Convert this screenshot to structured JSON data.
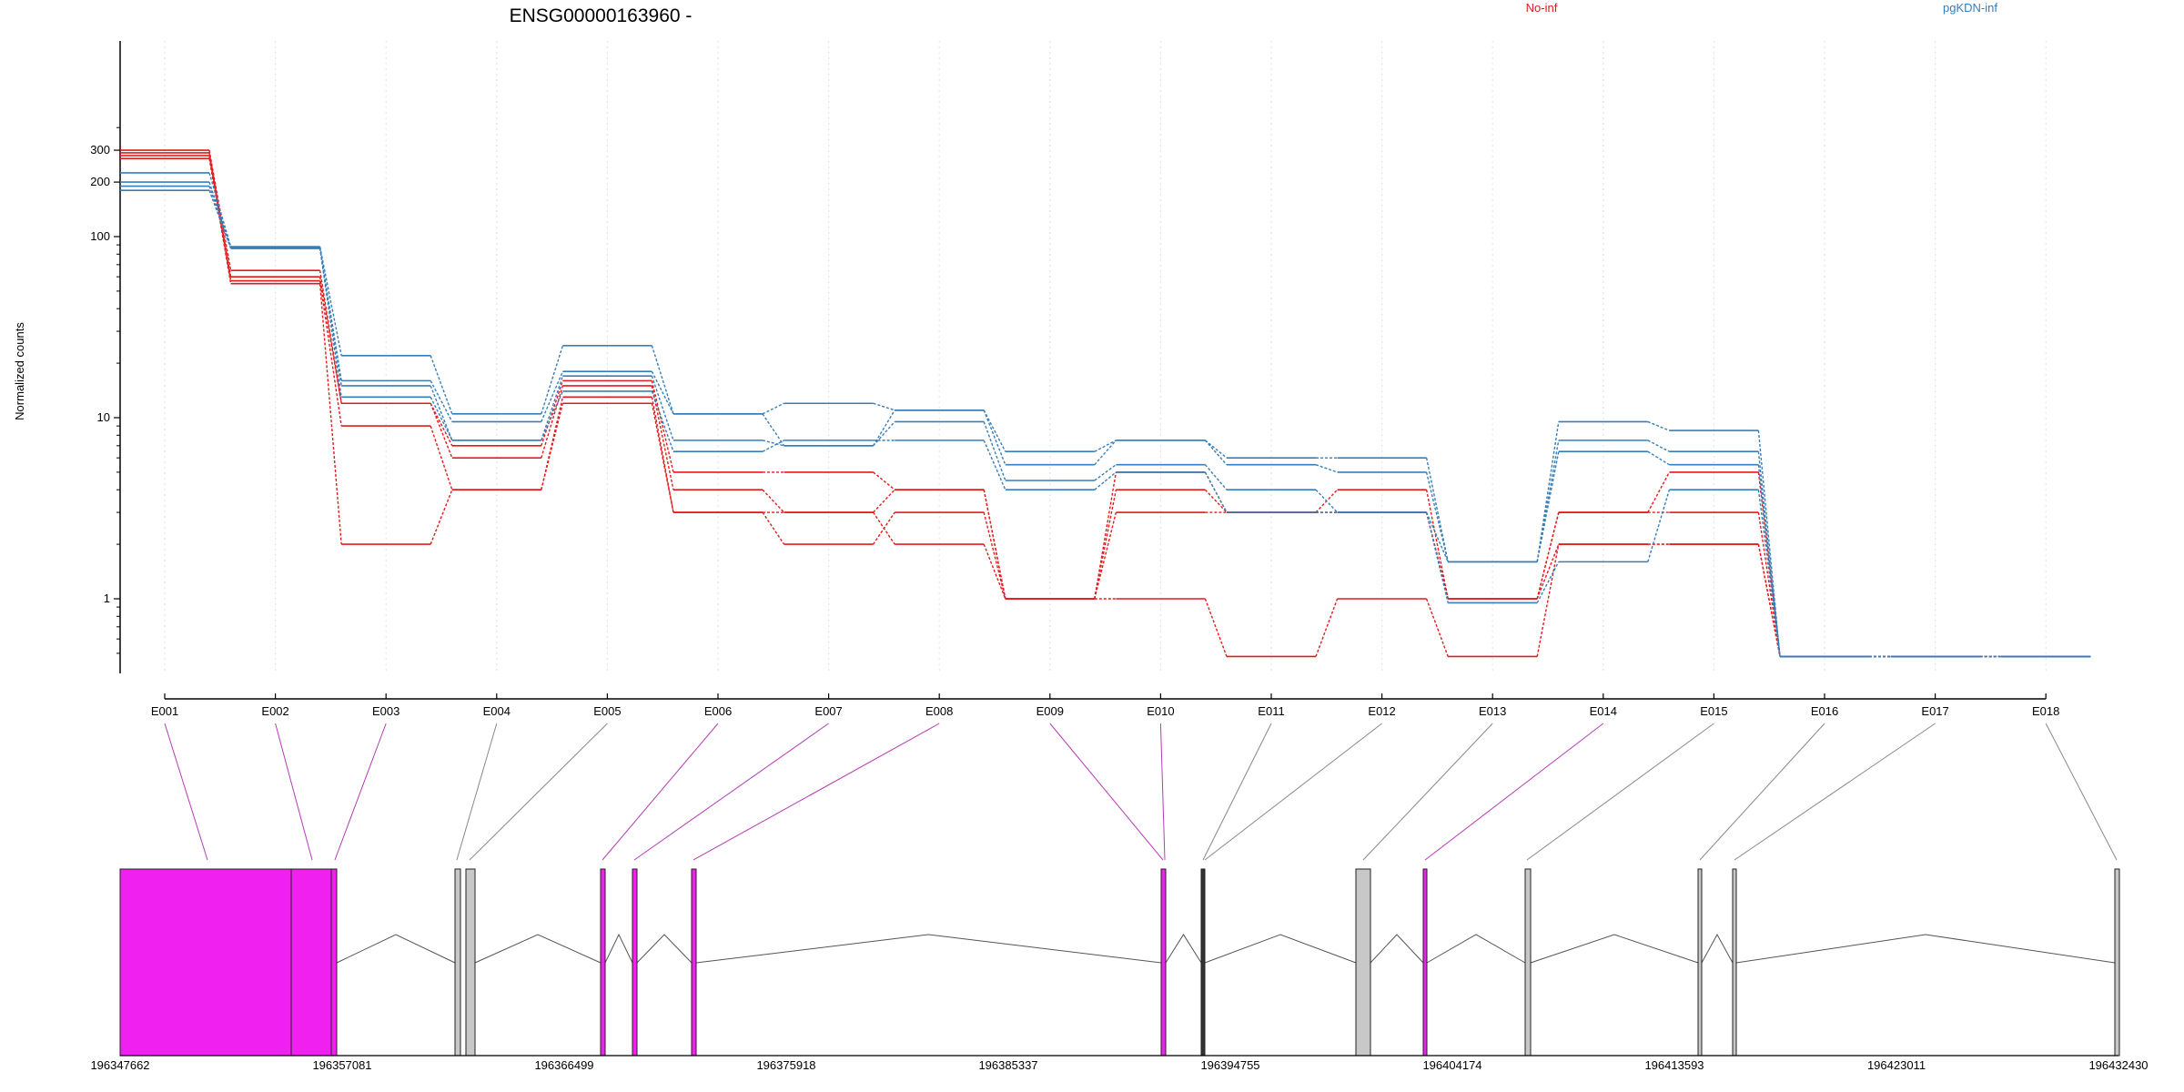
{
  "chart_data": {
    "type": "line",
    "title": "ENSG00000163960 -",
    "ylabel": "Normalized counts",
    "xlabel": "",
    "yscale": "log",
    "ylim": [
      0.45,
      400
    ],
    "y_ticks": [
      1,
      10,
      100,
      200,
      300
    ],
    "y_tick_labels": [
      "1",
      "10",
      "100",
      "200",
      "300"
    ],
    "legend": [
      "No-inf",
      "pgKDN-inf"
    ],
    "legend_placement": "top",
    "colors": {
      "No-inf": "#e31a1c",
      "pgKDN-inf": "#377eb8",
      "exon_tested": "#f020f0",
      "exon_other": "#c8c8c8"
    },
    "categories": [
      "E001",
      "E002",
      "E003",
      "E004",
      "E005",
      "E006",
      "E007",
      "E008",
      "E009",
      "E010",
      "E011",
      "E012",
      "E013",
      "E014",
      "E015",
      "E016",
      "E017",
      "E018"
    ],
    "series": [
      {
        "group": "No-inf",
        "values": [
          300,
          65,
          12,
          7,
          16,
          5,
          5,
          4,
          1,
          5,
          3,
          4,
          1,
          3,
          5,
          0.48,
          0.48,
          0.48
        ]
      },
      {
        "group": "No-inf",
        "values": [
          290,
          60,
          12,
          6,
          15,
          4,
          3,
          4,
          1,
          4,
          3,
          3,
          1,
          3,
          3,
          0.48,
          0.48,
          0.48
        ]
      },
      {
        "group": "No-inf",
        "values": [
          280,
          57,
          9,
          4,
          13,
          3,
          2,
          3,
          1,
          3,
          3,
          3,
          1,
          2,
          2,
          0.48,
          0.48,
          0.48
        ]
      },
      {
        "group": "No-inf",
        "values": [
          270,
          55,
          2,
          4,
          12,
          3,
          3,
          2,
          1,
          1,
          0.48,
          1,
          0.48,
          2,
          2,
          0.48,
          0.48,
          0.48
        ]
      },
      {
        "group": "pgKDN-inf",
        "values": [
          225,
          88,
          22,
          10.5,
          25,
          10.5,
          7,
          11,
          6.5,
          7.5,
          6,
          6,
          1.6,
          9.5,
          8.5,
          0.48,
          0.48,
          0.48
        ]
      },
      {
        "group": "pgKDN-inf",
        "values": [
          200,
          87,
          16,
          9.5,
          18,
          10.5,
          12,
          11,
          5.5,
          7.5,
          5.5,
          5,
          1.6,
          7.5,
          6.5,
          0.48,
          0.48,
          0.48
        ]
      },
      {
        "group": "pgKDN-inf",
        "values": [
          190,
          87,
          15,
          7.5,
          17,
          7.5,
          7,
          9.5,
          4.5,
          5.5,
          4,
          3,
          1.6,
          6.5,
          5.5,
          0.48,
          0.48,
          0.48
        ]
      },
      {
        "group": "pgKDN-inf",
        "values": [
          180,
          86,
          13,
          7.5,
          14,
          6.5,
          7.5,
          7.5,
          4,
          5,
          3,
          3,
          0.95,
          1.6,
          4,
          0.48,
          0.48,
          0.48
        ]
      }
    ],
    "gene_model": {
      "coordinate_ticks": [
        "196347662",
        "196357081",
        "196366499",
        "196375918",
        "196385337",
        "196394755",
        "196404174",
        "196413593",
        "196423011",
        "196432430"
      ],
      "exons": [
        {
          "id": "E001",
          "tested": true
        },
        {
          "id": "E002",
          "tested": true
        },
        {
          "id": "E003",
          "tested": true
        },
        {
          "id": "E004",
          "tested": false
        },
        {
          "id": "E005",
          "tested": false
        },
        {
          "id": "E006",
          "tested": true
        },
        {
          "id": "E007",
          "tested": true
        },
        {
          "id": "E008",
          "tested": true
        },
        {
          "id": "E009",
          "tested": true
        },
        {
          "id": "E010",
          "tested": true
        },
        {
          "id": "E011",
          "tested": false
        },
        {
          "id": "E012",
          "tested": false
        },
        {
          "id": "E013",
          "tested": false
        },
        {
          "id": "E014",
          "tested": true
        },
        {
          "id": "E015",
          "tested": false
        },
        {
          "id": "E016",
          "tested": false
        },
        {
          "id": "E017",
          "tested": false
        },
        {
          "id": "E018",
          "tested": false
        }
      ]
    }
  }
}
